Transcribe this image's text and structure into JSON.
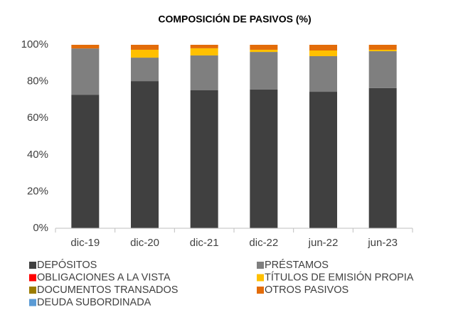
{
  "chart_data": {
    "type": "stacked_bar",
    "title": "COMPOSICIÓN DE PASIVOS (%)",
    "categories": [
      "dic-19",
      "dic-20",
      "dic-21",
      "dic-22",
      "jun-22",
      "jun-23"
    ],
    "series": [
      {
        "name": "DEPÓSITOS",
        "color": "#404040",
        "values": [
          72.8,
          80.2,
          75.2,
          75.6,
          74.4,
          76.4
        ]
      },
      {
        "name": "PRÉSTAMOS",
        "color": "#7f7f7f",
        "values": [
          25.2,
          12.8,
          19.0,
          20.5,
          19.4,
          20.1
        ]
      },
      {
        "name": "OBLIGACIONES A LA VISTA",
        "color": "#ff0000",
        "values": [
          0,
          0,
          0,
          0,
          0,
          0
        ]
      },
      {
        "name": "TÍTULOS DE EMISIÓN PROPIA",
        "color": "#ffc000",
        "values": [
          0,
          4.3,
          3.9,
          1.2,
          3.1,
          0.8
        ]
      },
      {
        "name": "DOCUMENTOS TRANSADOS",
        "color": "#9c7c00",
        "values": [
          0,
          0,
          0,
          0,
          0,
          0
        ]
      },
      {
        "name": "OTROS PASIVOS",
        "color": "#e36c09",
        "values": [
          2.0,
          2.7,
          1.9,
          2.7,
          3.1,
          2.7
        ]
      },
      {
        "name": "DEUDA SUBORDINADA",
        "color": "#5b9bd5",
        "values": [
          0,
          0,
          0,
          0,
          0,
          0
        ]
      }
    ],
    "ylim": [
      0,
      100
    ],
    "yticks": [
      {
        "value": 0,
        "label": "0%"
      },
      {
        "value": 20,
        "label": "20%"
      },
      {
        "value": 40,
        "label": "40%"
      },
      {
        "value": 60,
        "label": "60%"
      },
      {
        "value": 80,
        "label": "80%"
      },
      {
        "value": 100,
        "label": "100%"
      }
    ],
    "legend": "bottom"
  }
}
